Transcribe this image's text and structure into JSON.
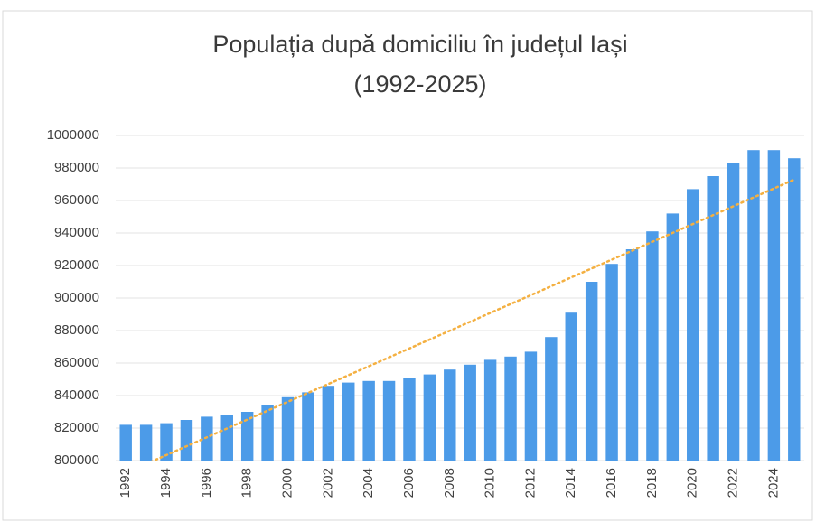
{
  "chart_data": {
    "type": "bar",
    "title": [
      "Populația după domiciliu în județul Iași",
      "(1992-2025)"
    ],
    "categories": [
      "1992",
      null,
      "1994",
      null,
      "1996",
      null,
      "1998",
      null,
      "2000",
      null,
      "2002",
      null,
      "2004",
      null,
      "2006",
      null,
      "2008",
      null,
      "2010",
      null,
      "2012",
      null,
      "2014",
      null,
      "2016",
      null,
      "2018",
      null,
      "2020",
      null,
      "2022",
      null,
      "2024",
      null
    ],
    "values": [
      822000,
      822000,
      823000,
      825000,
      827000,
      828000,
      830000,
      834000,
      839000,
      842000,
      846000,
      848000,
      849000,
      849000,
      851000,
      853000,
      856000,
      859000,
      862000,
      864000,
      867000,
      876000,
      891000,
      910000,
      921000,
      930000,
      941000,
      952000,
      967000,
      975000,
      983000,
      991000,
      991000,
      986000
    ],
    "color": "#4c9be8",
    "trendline": {
      "kind": "linear",
      "color": "#f4b041"
    },
    "ylim": [
      800000,
      1000000
    ],
    "yticks": [
      800000,
      820000,
      840000,
      860000,
      880000,
      900000,
      920000,
      940000,
      960000,
      980000,
      1000000
    ],
    "grid": true
  }
}
